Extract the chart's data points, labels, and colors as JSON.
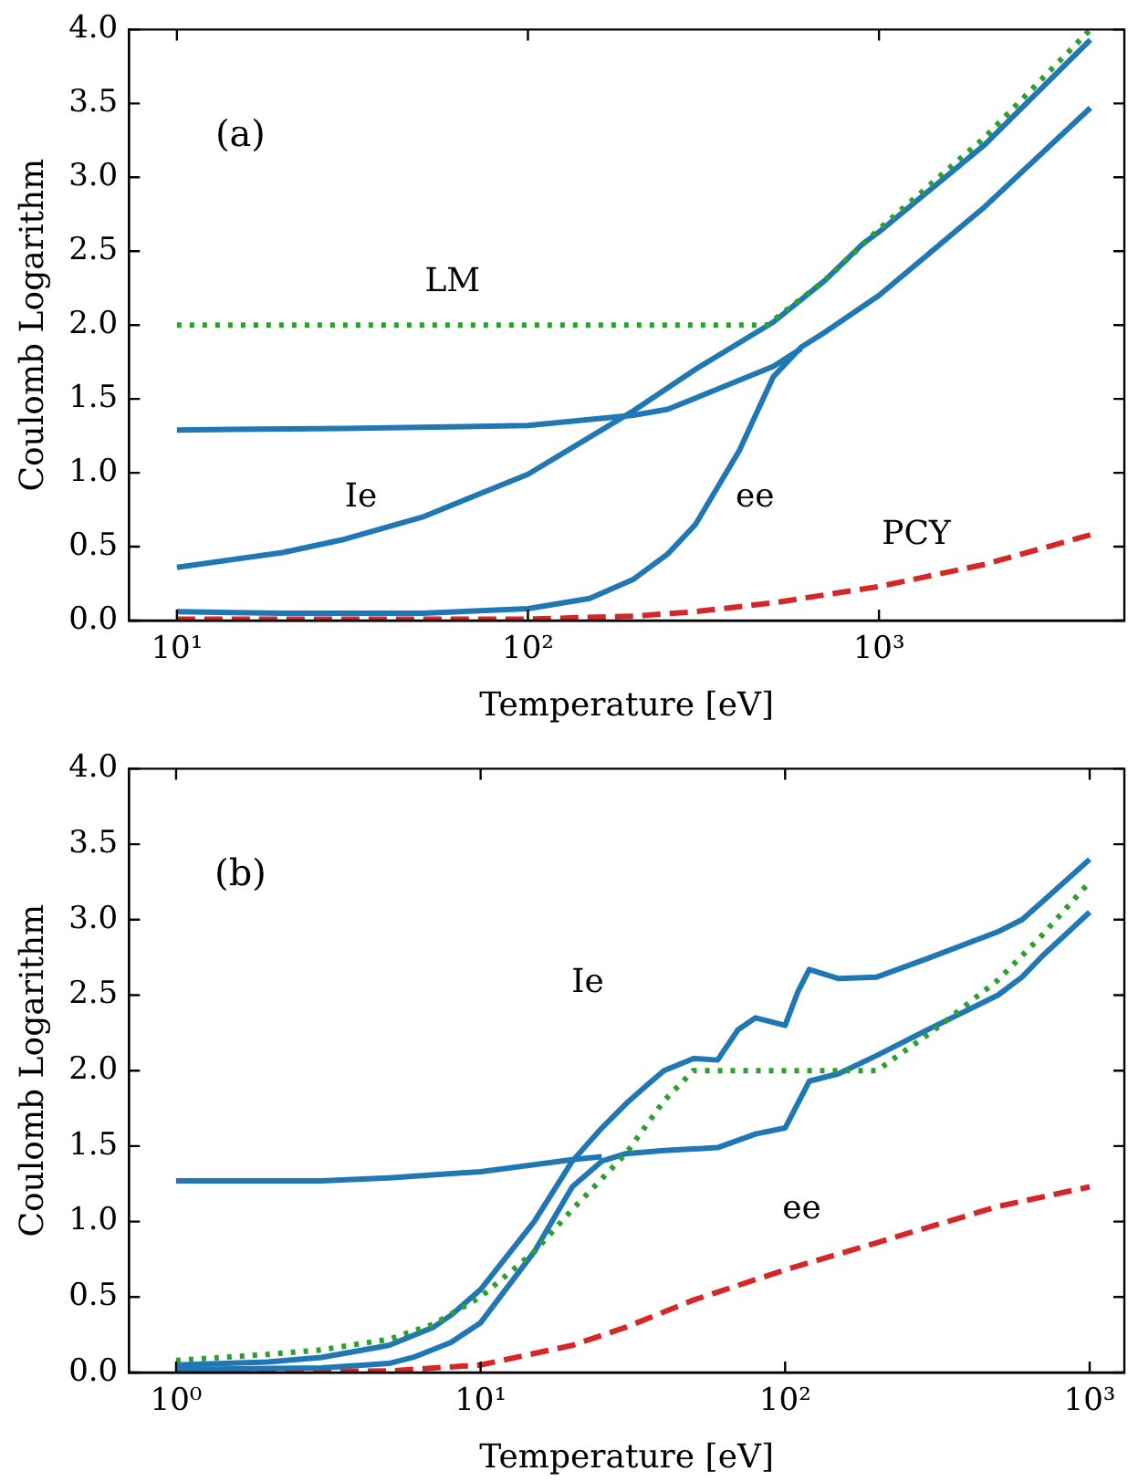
{
  "chart_data": [
    {
      "type": "line",
      "xlabel": "Temperature [eV]",
      "ylabel": "Coulomb Logarithm",
      "log": "x",
      "grid": false,
      "legend": false,
      "marker": "none",
      "xlim": [
        7.3,
        5000
      ],
      "ylim": [
        0,
        4
      ],
      "xticks": [
        {
          "value": 10,
          "label": "10¹"
        },
        {
          "value": 100,
          "label": "10²"
        },
        {
          "value": 1000,
          "label": "10³"
        }
      ],
      "yticks": [
        {
          "value": 0,
          "label": "0.0"
        },
        0.5,
        {
          "value": 1,
          "label": "1.0"
        },
        1.5,
        {
          "value": 2,
          "label": "2.0"
        },
        2.5,
        {
          "value": 3,
          "label": "3.0"
        },
        3.5,
        {
          "value": 4,
          "label": "4.0"
        }
      ],
      "annotations": [
        "(a)",
        "LM",
        "Ie",
        "ee",
        "PCY"
      ],
      "series": [
        {
          "color": "#2ca02c",
          "line_style": "dotted",
          "x": [
            10,
            480,
            700,
            1000,
            2000,
            4000
          ],
          "values": [
            2,
            2,
            2.3,
            2.65,
            3.27,
            4.0
          ]
        },
        {
          "color": "#1f77b4",
          "line_style": "solid",
          "x": [
            10,
            30,
            100,
            200,
            250,
            350,
            500,
            600
          ],
          "values": [
            1.29,
            1.3,
            1.32,
            1.39,
            1.43,
            1.57,
            1.72,
            1.84
          ]
        },
        {
          "color": "#1f77b4",
          "line_style": "solid",
          "x": [
            10,
            20,
            30,
            50,
            100,
            200,
            300,
            500,
            700,
            900,
            1000,
            2000,
            4000
          ],
          "values": [
            0.36,
            0.46,
            0.55,
            0.7,
            0.99,
            1.42,
            1.7,
            2.02,
            2.3,
            2.55,
            2.63,
            3.22,
            3.93
          ]
        },
        {
          "color": "#1f77b4",
          "line_style": "solid",
          "x": [
            10,
            20,
            50,
            100,
            150,
            200,
            250,
            300,
            400,
            500,
            600,
            700,
            1000,
            2000,
            4000
          ],
          "values": [
            0.06,
            0.05,
            0.05,
            0.08,
            0.15,
            0.28,
            0.45,
            0.65,
            1.15,
            1.65,
            1.85,
            1.95,
            2.2,
            2.8,
            3.47
          ]
        },
        {
          "color": "#d62728",
          "line_style": "dashed",
          "x": [
            10,
            100,
            200,
            300,
            500,
            1000,
            2000,
            4000
          ],
          "values": [
            0.01,
            0.01,
            0.03,
            0.06,
            0.12,
            0.23,
            0.38,
            0.58
          ]
        }
      ]
    },
    {
      "type": "line",
      "xlabel": "Temperature [eV]",
      "ylabel": "Coulomb Logarithm",
      "log": "x",
      "grid": false,
      "legend": false,
      "marker": "none",
      "xlim": [
        0.7,
        1300
      ],
      "ylim": [
        0,
        4
      ],
      "xticks": [
        {
          "value": 1,
          "label": "10⁰"
        },
        {
          "value": 10,
          "label": "10¹"
        },
        {
          "value": 100,
          "label": "10²"
        },
        {
          "value": 1000,
          "label": "10³"
        }
      ],
      "yticks": [
        {
          "value": 0,
          "label": "0.0"
        },
        0.5,
        {
          "value": 1,
          "label": "1.0"
        },
        1.5,
        {
          "value": 2,
          "label": "2.0"
        },
        2.5,
        {
          "value": 3,
          "label": "3.0"
        },
        3.5,
        {
          "value": 4,
          "label": "4.0"
        }
      ],
      "annotations": [
        "(b)",
        "Ie",
        "ee"
      ],
      "series": [
        {
          "color": "#2ca02c",
          "line_style": "dotted",
          "x": [
            1,
            2,
            3,
            5,
            7,
            10,
            15,
            20,
            30,
            40,
            50,
            200,
            300,
            500,
            700,
            1000
          ],
          "values": [
            0.08,
            0.12,
            0.15,
            0.22,
            0.32,
            0.5,
            0.8,
            1.08,
            1.45,
            1.8,
            2.0,
            2.0,
            2.25,
            2.6,
            2.9,
            3.25
          ]
        },
        {
          "color": "#1f77b4",
          "line_style": "solid",
          "x": [
            1,
            3,
            5,
            10,
            20,
            25
          ],
          "values": [
            1.27,
            1.27,
            1.29,
            1.33,
            1.41,
            1.43
          ]
        },
        {
          "color": "#1f77b4",
          "line_style": "solid",
          "x": [
            1,
            2,
            3,
            5,
            7,
            8,
            10,
            15,
            20,
            25,
            30,
            35,
            40,
            50,
            60,
            70,
            80,
            100,
            110,
            120,
            150,
            200,
            300,
            500,
            600,
            700,
            1000
          ],
          "values": [
            0.05,
            0.07,
            0.1,
            0.18,
            0.3,
            0.38,
            0.55,
            1.0,
            1.4,
            1.62,
            1.78,
            1.9,
            2.0,
            2.08,
            2.07,
            2.27,
            2.35,
            2.3,
            2.52,
            2.67,
            2.61,
            2.62,
            2.75,
            2.92,
            3.0,
            3.12,
            3.4
          ]
        },
        {
          "color": "#1f77b4",
          "line_style": "solid",
          "x": [
            1,
            3,
            5,
            6,
            8,
            10,
            15,
            20,
            25,
            30,
            40,
            60,
            80,
            100,
            120,
            150,
            200,
            300,
            500,
            600,
            700,
            1000
          ],
          "values": [
            0.02,
            0.03,
            0.06,
            0.1,
            0.2,
            0.33,
            0.8,
            1.23,
            1.4,
            1.45,
            1.47,
            1.49,
            1.58,
            1.62,
            1.93,
            1.98,
            2.1,
            2.28,
            2.5,
            2.62,
            2.76,
            3.05
          ]
        },
        {
          "color": "#d62728",
          "line_style": "dashed",
          "x": [
            1,
            5,
            10,
            20,
            30,
            50,
            100,
            200,
            500,
            1000
          ],
          "values": [
            0,
            0.01,
            0.05,
            0.18,
            0.3,
            0.48,
            0.68,
            0.86,
            1.1,
            1.23
          ]
        }
      ]
    }
  ]
}
